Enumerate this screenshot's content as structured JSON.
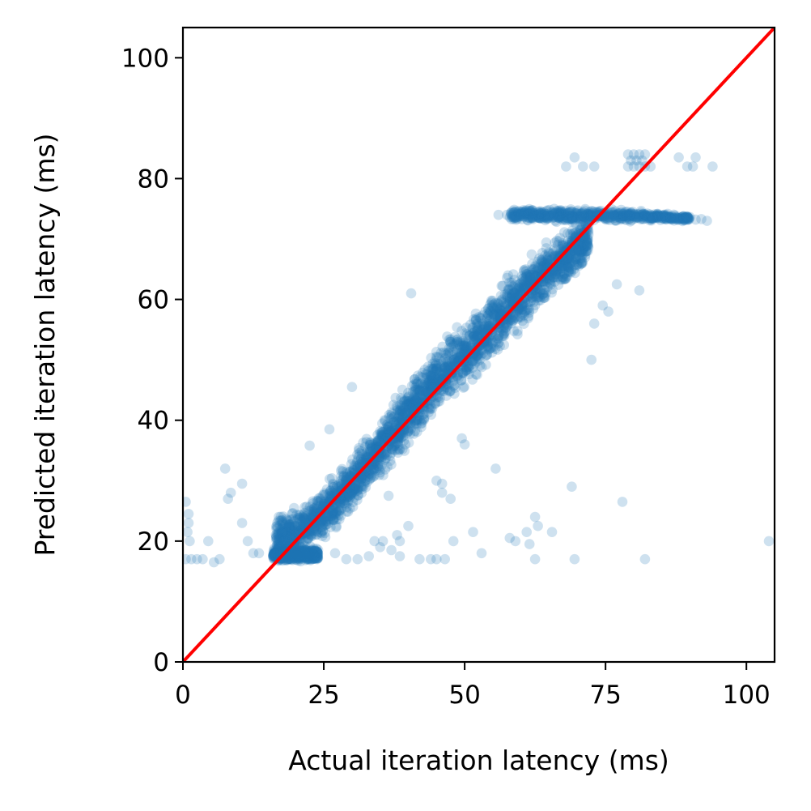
{
  "chart_data": {
    "type": "scatter",
    "title": "",
    "xlabel": "Actual iteration latency (ms)",
    "ylabel": "Predicted iteration latency (ms)",
    "xlim": [
      0,
      105
    ],
    "ylim": [
      0,
      105
    ],
    "xticks": [
      0,
      25,
      50,
      75,
      100
    ],
    "yticks": [
      0,
      20,
      40,
      60,
      80,
      100
    ],
    "xtick_labels": [
      "0",
      "25",
      "50",
      "75",
      "100"
    ],
    "ytick_labels": [
      "0",
      "20",
      "40",
      "60",
      "80",
      "100"
    ],
    "grid": false,
    "legend": "none",
    "colors": {
      "points": "#1f77b4",
      "reference_line": "#ff0000",
      "axes": "#000000"
    },
    "series": [
      {
        "name": "dense-band",
        "kind": "band",
        "description_points": [
          {
            "x": 16.5,
            "y_low": 15.5,
            "y_high": 25.5
          },
          {
            "x": 20,
            "y_low": 16.5,
            "y_high": 26
          },
          {
            "x": 25,
            "y_low": 19,
            "y_high": 30
          },
          {
            "x": 30,
            "y_low": 24,
            "y_high": 35
          },
          {
            "x": 35,
            "y_low": 30,
            "y_high": 41
          },
          {
            "x": 40,
            "y_low": 35,
            "y_high": 47
          },
          {
            "x": 45,
            "y_low": 40,
            "y_high": 53
          },
          {
            "x": 50,
            "y_low": 44,
            "y_high": 58
          },
          {
            "x": 55,
            "y_low": 49,
            "y_high": 62
          },
          {
            "x": 60,
            "y_low": 54,
            "y_high": 67
          },
          {
            "x": 65,
            "y_low": 59,
            "y_high": 71
          },
          {
            "x": 70,
            "y_low": 63,
            "y_high": 74
          },
          {
            "x": 72,
            "y_low": 66,
            "y_high": 74
          }
        ]
      },
      {
        "name": "plateau-74",
        "kind": "band",
        "description_points": [
          {
            "x": 58,
            "y_low": 72.8,
            "y_high": 75.2
          },
          {
            "x": 70,
            "y_low": 72.5,
            "y_high": 75.3
          },
          {
            "x": 80,
            "y_low": 72.8,
            "y_high": 75
          },
          {
            "x": 90,
            "y_low": 72.8,
            "y_high": 74
          }
        ]
      },
      {
        "name": "floor-17",
        "kind": "band",
        "description_points": [
          {
            "x": 16,
            "y_low": 16.5,
            "y_high": 19
          },
          {
            "x": 24,
            "y_low": 16.5,
            "y_high": 19
          }
        ]
      },
      {
        "name": "outliers",
        "kind": "points",
        "points": [
          [
            0.5,
            26.5
          ],
          [
            1,
            24.5
          ],
          [
            1,
            23
          ],
          [
            0.8,
            21.5
          ],
          [
            1.2,
            20
          ],
          [
            0.5,
            17
          ],
          [
            1.5,
            17
          ],
          [
            2.5,
            17
          ],
          [
            3.5,
            17
          ],
          [
            4.5,
            20
          ],
          [
            6.5,
            17
          ],
          [
            5.5,
            16.5
          ],
          [
            7.5,
            32
          ],
          [
            8.5,
            28
          ],
          [
            8,
            27
          ],
          [
            10.5,
            29.5
          ],
          [
            10.5,
            23
          ],
          [
            11.5,
            20
          ],
          [
            12.5,
            18
          ],
          [
            13.5,
            18
          ],
          [
            17,
            24
          ],
          [
            22.5,
            35.8
          ],
          [
            26,
            38.5
          ],
          [
            29.5,
            29
          ],
          [
            30,
            45.5
          ],
          [
            27,
            18
          ],
          [
            29,
            17
          ],
          [
            31,
            17
          ],
          [
            33,
            17.5
          ],
          [
            34,
            20
          ],
          [
            35.5,
            20
          ],
          [
            35,
            19
          ],
          [
            37,
            18.5
          ],
          [
            38,
            21
          ],
          [
            38.5,
            20
          ],
          [
            40,
            22.5
          ],
          [
            36.5,
            27.5
          ],
          [
            38.5,
            17.5
          ],
          [
            42,
            17
          ],
          [
            44,
            17
          ],
          [
            45,
            17
          ],
          [
            46.5,
            17
          ],
          [
            40.5,
            61
          ],
          [
            44.5,
            47
          ],
          [
            46,
            28
          ],
          [
            45,
            30
          ],
          [
            46,
            29.5
          ],
          [
            47.5,
            27
          ],
          [
            48,
            20
          ],
          [
            49.5,
            37
          ],
          [
            50,
            36
          ],
          [
            51.5,
            21.5
          ],
          [
            53,
            18
          ],
          [
            55.5,
            32
          ],
          [
            58,
            20.5
          ],
          [
            59,
            20
          ],
          [
            61,
            21.5
          ],
          [
            61.5,
            19.5
          ],
          [
            62.5,
            17
          ],
          [
            62.5,
            24
          ],
          [
            63,
            22.5
          ],
          [
            65.5,
            21.5
          ],
          [
            69.5,
            17
          ],
          [
            69,
            29
          ],
          [
            72.5,
            50
          ],
          [
            73,
            56
          ],
          [
            74.5,
            59
          ],
          [
            75.5,
            58
          ],
          [
            77,
            62.5
          ],
          [
            81,
            61.5
          ],
          [
            78,
            26.5
          ],
          [
            82,
            17
          ],
          [
            104,
            20
          ],
          [
            68,
            82
          ],
          [
            69.5,
            83.5
          ],
          [
            71,
            82
          ],
          [
            73,
            82
          ],
          [
            88,
            83.5
          ],
          [
            89.5,
            82
          ],
          [
            90.5,
            82
          ],
          [
            91,
            83.5
          ],
          [
            94,
            82
          ],
          [
            79,
            84
          ],
          [
            80,
            84
          ],
          [
            81,
            84
          ],
          [
            82,
            84
          ],
          [
            79.5,
            83
          ],
          [
            80.5,
            83
          ],
          [
            81.5,
            83
          ],
          [
            79,
            82
          ],
          [
            80,
            82
          ],
          [
            81,
            82
          ],
          [
            82,
            82
          ],
          [
            83,
            82
          ],
          [
            56,
            74
          ],
          [
            57.5,
            74
          ],
          [
            89.5,
            73.5
          ],
          [
            91,
            73.2
          ],
          [
            92,
            73.3
          ],
          [
            93,
            73
          ]
        ]
      }
    ],
    "reference_line": {
      "label": "y = x",
      "from": [
        0,
        0
      ],
      "to": [
        105,
        105
      ]
    }
  }
}
